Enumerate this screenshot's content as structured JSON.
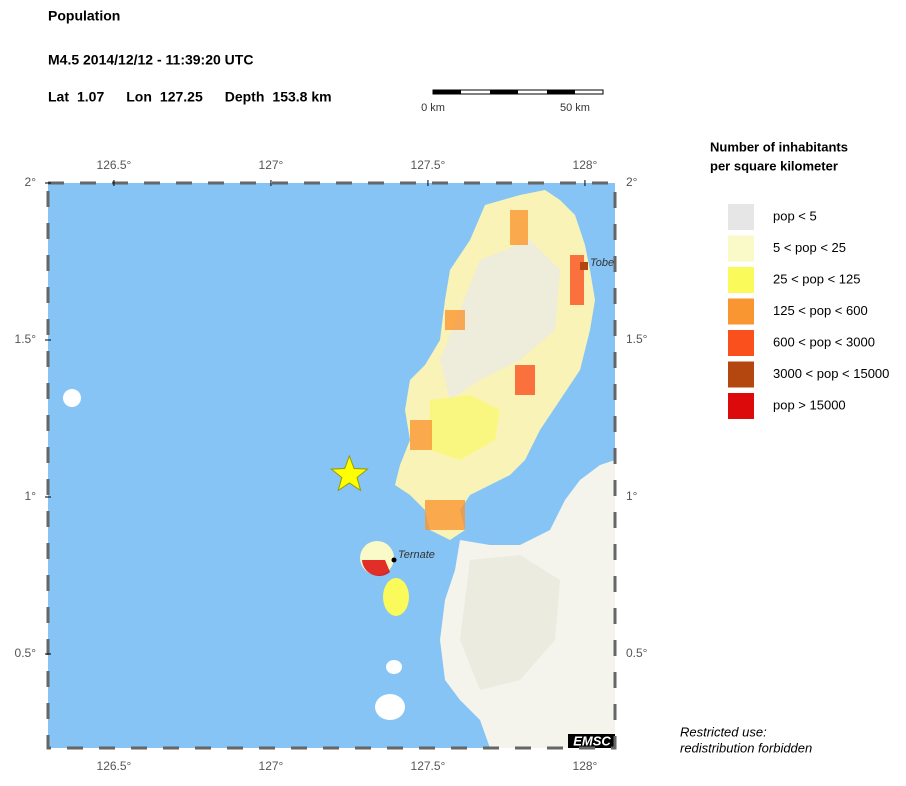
{
  "header": {
    "title": "Population",
    "event": "M4.5  2014/12/12 - 11:39:20 UTC",
    "location": [
      {
        "label": "Lat",
        "value": 1.07
      },
      {
        "label": "Lon",
        "value": 127.25
      },
      {
        "label": "Depth",
        "value": "153.8 km"
      }
    ]
  },
  "scale_bar": {
    "start": "0 km",
    "end": "50 km"
  },
  "map": {
    "lon_ticks": [
      {
        "value": 126.5,
        "label": "126.5°"
      },
      {
        "value": 127,
        "label": "127°"
      },
      {
        "value": 127.5,
        "label": "127.5°"
      },
      {
        "value": 128,
        "label": "128°"
      }
    ],
    "lat_ticks": [
      {
        "value": 2,
        "label": "2°"
      },
      {
        "value": 1.5,
        "label": "1.5°"
      },
      {
        "value": 1,
        "label": "1°"
      },
      {
        "value": 0.5,
        "label": "0.5°"
      }
    ],
    "places": [
      {
        "name": "Tobelo"
      },
      {
        "name": "Ternate"
      }
    ],
    "credit": "EMSC"
  },
  "legend": {
    "title": [
      "Number of inhabitants",
      "per square kilometer"
    ],
    "items": [
      {
        "label": "pop < 5",
        "color": "#e6e6e6"
      },
      {
        "label": "5 < pop < 25",
        "color": "#fafac8"
      },
      {
        "label": "25 < pop < 125",
        "color": "#fafa5a"
      },
      {
        "label": "125 < pop < 600",
        "color": "#fa9632"
      },
      {
        "label": "600 < pop < 3000",
        "color": "#fa501e"
      },
      {
        "label": "3000 < pop < 15000",
        "color": "#b4460f"
      },
      {
        "label": "pop > 15000",
        "color": "#dc0a0a"
      }
    ]
  },
  "footer": [
    "Restricted use:",
    "redistribution forbidden"
  ]
}
